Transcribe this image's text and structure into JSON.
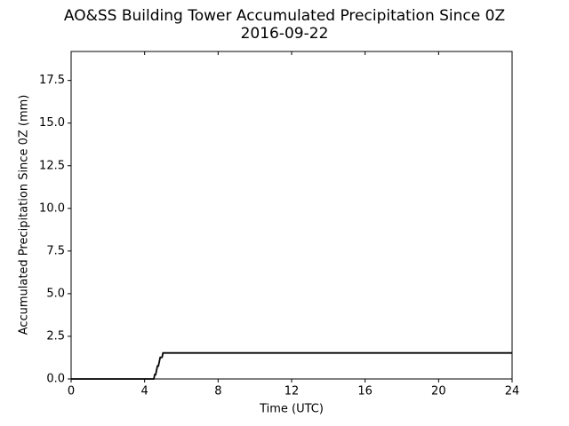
{
  "chart_data": {
    "type": "line",
    "title": "AO&SS Building Tower Accumulated Precipitation Since 0Z",
    "subtitle": "2016-09-22",
    "x_label": "Time (UTC)",
    "y_label": "Accumulated Precipitation Since 0Z (mm)",
    "x": [
      0,
      4.5,
      4.55,
      4.6,
      4.65,
      4.7,
      4.75,
      4.8,
      4.85,
      4.95,
      5.0,
      24
    ],
    "series": [
      {
        "color": "#000000",
        "values": [
          0,
          0,
          0.254,
          0.254,
          0.508,
          0.762,
          0.762,
          1.016,
          1.27,
          1.27,
          1.524,
          1.524
        ]
      }
    ],
    "xlim": [
      0,
      24
    ],
    "ylim": [
      0,
      19.2
    ],
    "xticks": [
      0,
      4,
      8,
      12,
      16,
      20,
      24
    ],
    "yticks": [
      {
        "value": 0,
        "label": "0.0"
      },
      {
        "value": 2.5,
        "label": "2.5"
      },
      {
        "value": 5,
        "label": "5.0"
      },
      {
        "value": 7.5,
        "label": "7.5"
      },
      {
        "value": 10,
        "label": "10.0"
      },
      {
        "value": 12.5,
        "label": "12.5"
      },
      {
        "value": 15,
        "label": "15.0"
      },
      {
        "value": 17.5,
        "label": "17.5"
      }
    ],
    "grid": false
  }
}
